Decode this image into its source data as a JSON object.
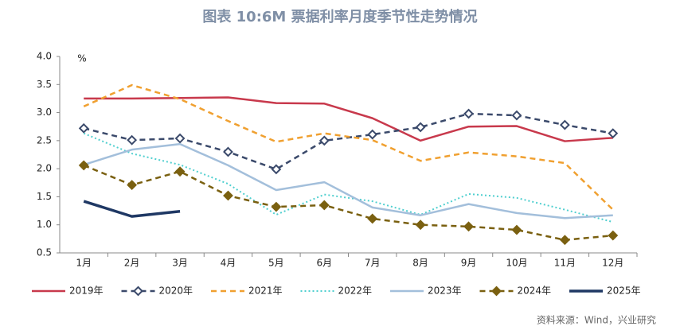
{
  "chart_data": {
    "type": "line",
    "title": "图表 10:6M 票据利率月度季节性走势情况",
    "y_unit": "%",
    "source": "资料来源：Wind，兴业研究",
    "categories": [
      "1月",
      "2月",
      "3月",
      "4月",
      "5月",
      "6月",
      "7月",
      "8月",
      "9月",
      "10月",
      "11月",
      "12月"
    ],
    "ylim": [
      0.5,
      4.0
    ],
    "yticks": [
      {
        "value": 0.5,
        "label": "0.5"
      },
      {
        "value": 1,
        "label": "1.0"
      },
      {
        "value": 1.5,
        "label": "1.5"
      },
      {
        "value": 2,
        "label": "2.0"
      },
      {
        "value": 2.5,
        "label": "2.5"
      },
      {
        "value": 3,
        "label": "3.0"
      },
      {
        "value": 3.5,
        "label": "3.5"
      },
      {
        "value": 4,
        "label": "4.0"
      }
    ],
    "grid": false,
    "legend": "bottom",
    "series": [
      {
        "name": "2019年",
        "color": "#c8394c",
        "line_style": "solid",
        "marker": "none",
        "width": 2.5,
        "values": [
          3.25,
          3.25,
          3.26,
          3.27,
          3.17,
          3.16,
          2.9,
          2.5,
          2.75,
          2.76,
          2.49,
          2.55
        ]
      },
      {
        "name": "2020年",
        "color": "#3b4a6b",
        "line_style": "dashed",
        "marker": "diamond",
        "width": 2.5,
        "values": [
          2.72,
          2.51,
          2.54,
          2.3,
          1.99,
          2.5,
          2.61,
          2.74,
          2.98,
          2.95,
          2.78,
          2.63
        ]
      },
      {
        "name": "2021年",
        "color": "#f0a030",
        "line_style": "dashed",
        "marker": "none",
        "width": 2.5,
        "values": [
          3.11,
          3.49,
          3.24,
          2.85,
          2.48,
          2.63,
          2.51,
          2.14,
          2.29,
          2.22,
          2.1,
          1.27
        ]
      },
      {
        "name": "2022年",
        "color": "#4fcfcf",
        "line_style": "dotted",
        "marker": "none",
        "width": 2,
        "values": [
          2.63,
          2.27,
          2.07,
          1.73,
          1.18,
          1.54,
          1.42,
          1.18,
          1.55,
          1.48,
          1.27,
          1.05
        ]
      },
      {
        "name": "2023年",
        "color": "#a3bfdb",
        "line_style": "solid",
        "marker": "none",
        "width": 2.5,
        "values": [
          2.07,
          2.34,
          2.44,
          2.06,
          1.62,
          1.76,
          1.31,
          1.17,
          1.37,
          1.21,
          1.12,
          1.17
        ]
      },
      {
        "name": "2024年",
        "color": "#7a6010",
        "line_style": "dashed",
        "marker": "diamond",
        "width": 2.5,
        "values": [
          2.06,
          1.71,
          1.95,
          1.52,
          1.32,
          1.35,
          1.11,
          1.0,
          0.97,
          0.91,
          0.73,
          0.81
        ]
      },
      {
        "name": "2025年",
        "color": "#1f3864",
        "line_style": "solid",
        "marker": "none",
        "width": 3.5,
        "values": [
          1.42,
          1.15,
          1.24,
          null,
          null,
          null,
          null,
          null,
          null,
          null,
          null,
          null
        ]
      }
    ]
  }
}
